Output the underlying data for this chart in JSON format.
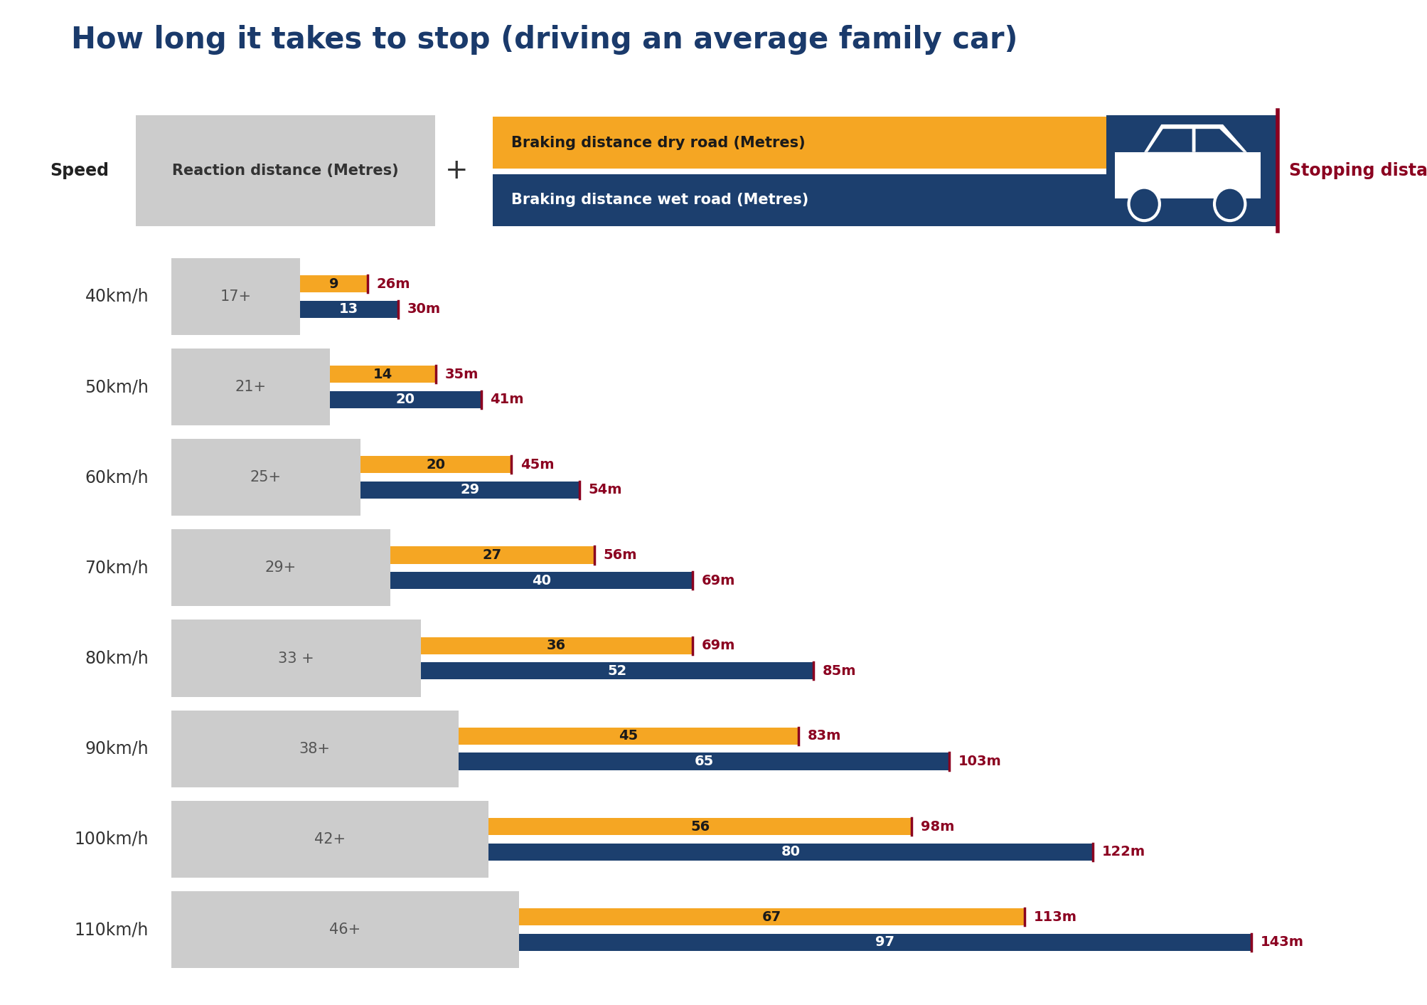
{
  "title": "How long it takes to stop (driving an average family car)",
  "title_color": "#1a3a6b",
  "title_fontsize": 30,
  "speeds": [
    "40km/h",
    "50km/h",
    "60km/h",
    "70km/h",
    "80km/h",
    "90km/h",
    "100km/h",
    "110km/h"
  ],
  "reaction_distances": [
    17,
    21,
    25,
    29,
    33,
    38,
    42,
    46
  ],
  "reaction_labels": [
    "17+",
    "21+",
    "25+",
    "29+",
    "33 +",
    "38+",
    "42+",
    "46+"
  ],
  "braking_dry": [
    9,
    14,
    20,
    27,
    36,
    45,
    56,
    67
  ],
  "braking_wet": [
    13,
    20,
    29,
    40,
    52,
    65,
    80,
    97
  ],
  "total_dry": [
    "26m",
    "35m",
    "45m",
    "56m",
    "69m",
    "83m",
    "98m",
    "113m"
  ],
  "total_wet": [
    "30m",
    "41m",
    "54m",
    "69m",
    "85m",
    "103m",
    "122m",
    "143m"
  ],
  "color_reaction": "#cccccc",
  "color_dry": "#f5a623",
  "color_wet": "#1c3f6e",
  "color_total": "#8b0020",
  "legend_dry_label": "Braking distance dry road (Metres)",
  "legend_wet_label": "Braking distance wet road (Metres)",
  "reaction_label_header": "Reaction distance (Metres)",
  "speed_header": "Speed",
  "stopping_distance_label": "Stopping distance",
  "background_color": "#ffffff"
}
